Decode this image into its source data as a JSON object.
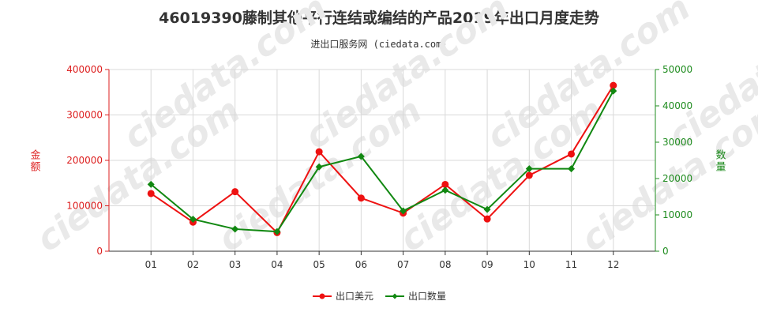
{
  "chart_data": {
    "type": "line",
    "title": "46019390藤制其他平行连结或编结的产品2019年出口月度走势",
    "subtitle": "进出口服务网 (ciedata.com)",
    "categories": [
      "01",
      "02",
      "03",
      "04",
      "05",
      "06",
      "07",
      "08",
      "09",
      "10",
      "11",
      "12"
    ],
    "left_axis": {
      "label": "金额",
      "ylim": [
        0,
        400000
      ],
      "ticks": [
        0,
        100000,
        200000,
        300000,
        400000
      ],
      "tick_labels": [
        "0",
        "100000",
        "200000",
        "300000",
        "400000"
      ],
      "color": "#dd1f1f"
    },
    "right_axis": {
      "label": "数量",
      "ylim": [
        0,
        50000
      ],
      "ticks": [
        0,
        10000,
        20000,
        30000,
        40000,
        50000
      ],
      "tick_labels": [
        "0",
        "10000",
        "20000",
        "30000",
        "40000",
        "50000"
      ],
      "color": "#1f8c1f"
    },
    "series": [
      {
        "name": "出口美元",
        "axis": "left",
        "color": "#ee1111",
        "marker": "circle",
        "values": [
          127000,
          64000,
          131000,
          41000,
          219000,
          117000,
          84000,
          147000,
          71000,
          167000,
          214000,
          365000
        ]
      },
      {
        "name": "出口数量",
        "axis": "right",
        "color": "#118811",
        "marker": "diamond",
        "values": [
          18400,
          8800,
          6100,
          5400,
          23200,
          26100,
          11100,
          16800,
          11500,
          22700,
          22700,
          44100
        ]
      }
    ],
    "grid": true,
    "legend_position": "bottom-center"
  }
}
